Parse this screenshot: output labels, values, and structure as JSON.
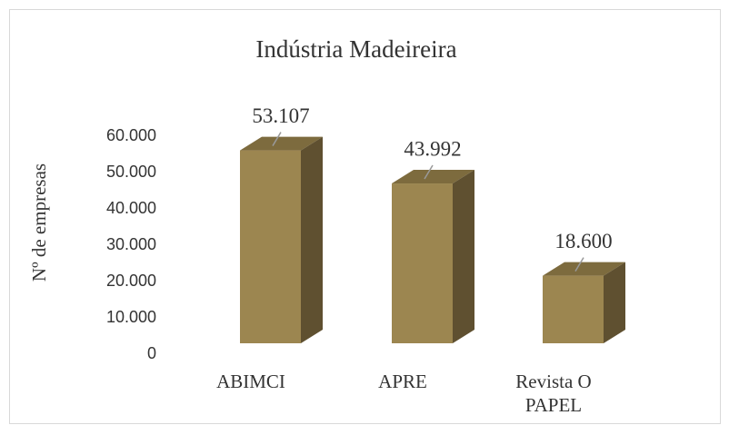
{
  "chart_data": {
    "type": "bar3d",
    "title": "Indústria Madeireira",
    "y_label": "Nº de empresas",
    "categories": [
      "ABIMCI",
      "APRE",
      "Revista O PAPEL"
    ],
    "values": [
      53107,
      43992,
      18600
    ],
    "value_labels": [
      "53.107",
      "43.992",
      "18.600"
    ],
    "color": "#9c8650",
    "ylim": [
      0,
      60000
    ],
    "yticks": [
      0,
      {
        "value": 10000,
        "label": "10.000"
      },
      {
        "value": 20000,
        "label": "20.000"
      },
      {
        "value": 30000,
        "label": "30.000"
      },
      {
        "value": 40000,
        "label": "40.000"
      },
      {
        "value": 50000,
        "label": "50.000"
      },
      {
        "value": 60000,
        "label": "60.000"
      }
    ]
  }
}
